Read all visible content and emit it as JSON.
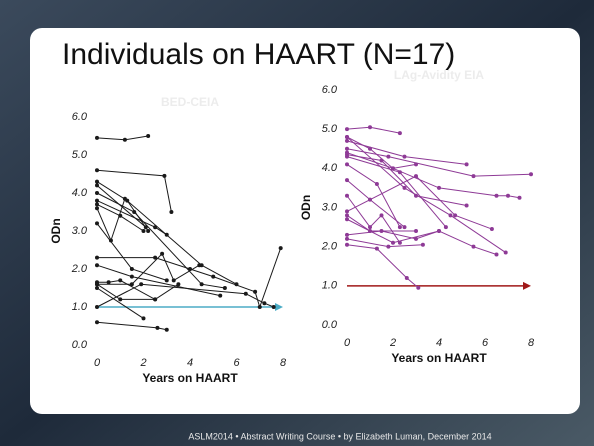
{
  "slide": {
    "title": "Individuals on HAART (N=17)",
    "footer": "ASLM2014  •  Abstract Writing Course  •  by Elizabeth Luman, December 2014"
  },
  "chart_data": [
    {
      "type": "line",
      "title": "BED-CEIA",
      "xlabel": "Years on HAART",
      "ylabel": "ODn",
      "color": "#1a1a1a",
      "xlim": [
        0,
        8
      ],
      "xticks": [
        0,
        2,
        4,
        6,
        8
      ],
      "ylim": [
        0,
        6
      ],
      "yticks": [
        {
          "value": 0,
          "label": "0.0"
        },
        {
          "value": 1,
          "label": "1.0"
        },
        {
          "value": 2,
          "label": "2.0"
        },
        {
          "value": 3,
          "label": "3.0"
        },
        {
          "value": 4,
          "label": "4.0"
        },
        {
          "value": 5,
          "label": "5.0"
        },
        {
          "value": 6,
          "label": "6.0"
        }
      ],
      "reference_line": {
        "value": 1,
        "color": "#4bacc6"
      },
      "series": [
        {
          "x": [
            0,
            1.2,
            2.2
          ],
          "values": [
            5.45,
            5.4,
            5.5
          ]
        },
        {
          "x": [
            0,
            2.9,
            3.2
          ],
          "values": [
            4.6,
            4.45,
            3.5
          ]
        },
        {
          "x": [
            0,
            1.3,
            2.2
          ],
          "values": [
            4.3,
            3.8,
            3.0
          ]
        },
        {
          "x": [
            0,
            2.1
          ],
          "values": [
            4.2,
            3.1
          ]
        },
        {
          "x": [
            0,
            1.6,
            4.5,
            5.5
          ],
          "values": [
            4.0,
            3.5,
            1.6,
            1.5
          ]
        },
        {
          "x": [
            0,
            2.5,
            3
          ],
          "values": [
            3.8,
            3.1,
            2.9
          ]
        },
        {
          "x": [
            0,
            1,
            2
          ],
          "values": [
            3.7,
            3.4,
            3.0
          ]
        },
        {
          "x": [
            0,
            0.6,
            1.2,
            4.5,
            6
          ],
          "values": [
            3.6,
            2.75,
            3.85,
            2.1,
            1.6
          ]
        },
        {
          "x": [
            0,
            1.5,
            3
          ],
          "values": [
            3.2,
            2.0,
            1.7
          ]
        },
        {
          "x": [
            0,
            2.5,
            4,
            5,
            6.8,
            7,
            7.9
          ],
          "values": [
            2.3,
            2.3,
            2.0,
            1.8,
            1.4,
            1.0,
            2.55
          ]
        },
        {
          "x": [
            0,
            1.5,
            5.3
          ],
          "values": [
            2.1,
            1.8,
            1.3
          ]
        },
        {
          "x": [
            0,
            0.5,
            1,
            2.5,
            3.5
          ],
          "values": [
            1.65,
            1.65,
            1.7,
            1.2,
            1.6
          ]
        },
        {
          "x": [
            0,
            1.5,
            2.8,
            3.3,
            4.4
          ],
          "values": [
            1.6,
            1.6,
            2.4,
            1.7,
            2.1
          ]
        },
        {
          "x": [
            0,
            1,
            2.5
          ],
          "values": [
            1.6,
            1.2,
            1.2
          ]
        },
        {
          "x": [
            0,
            2
          ],
          "values": [
            1.5,
            0.7
          ]
        },
        {
          "x": [
            0,
            1.9,
            6.4,
            7.2,
            7.6
          ],
          "values": [
            1.0,
            1.6,
            1.35,
            1.1,
            1.0
          ]
        },
        {
          "x": [
            0,
            2.6,
            3
          ],
          "values": [
            0.6,
            0.45,
            0.4
          ]
        }
      ]
    },
    {
      "type": "line",
      "title": "LAg-Avidity EIA",
      "xlabel": "Years on HAART",
      "ylabel": "ODn",
      "color": "#8e3a96",
      "xlim": [
        0,
        8
      ],
      "xticks": [
        0,
        2,
        4,
        6,
        8
      ],
      "ylim": [
        0,
        6
      ],
      "yticks": [
        {
          "value": 0,
          "label": "0.0"
        },
        {
          "value": 1,
          "label": "1.0"
        },
        {
          "value": 2,
          "label": "2.0"
        },
        {
          "value": 3,
          "label": "3.0"
        },
        {
          "value": 4,
          "label": "4.0"
        },
        {
          "value": 5,
          "label": "5.0"
        },
        {
          "value": 6,
          "label": "6.0"
        }
      ],
      "reference_line": {
        "value": 1,
        "color": "#a01818"
      },
      "series": [
        {
          "x": [
            0,
            1,
            2.3
          ],
          "values": [
            5.0,
            5.05,
            4.9
          ]
        },
        {
          "x": [
            0,
            1,
            2,
            3
          ],
          "values": [
            4.8,
            4.5,
            4.0,
            4.1
          ]
        },
        {
          "x": [
            0,
            2.5,
            5.2
          ],
          "values": [
            4.7,
            4.3,
            4.1
          ]
        },
        {
          "x": [
            0,
            1.8,
            5.5,
            8
          ],
          "values": [
            4.5,
            4.3,
            3.8,
            3.85
          ]
        },
        {
          "x": [
            0,
            2,
            4,
            6.5,
            7,
            7.5
          ],
          "values": [
            4.4,
            4.0,
            3.5,
            3.3,
            3.3,
            3.25
          ]
        },
        {
          "x": [
            0,
            1.5,
            3,
            5.2
          ],
          "values": [
            4.35,
            4.2,
            3.3,
            3.05
          ]
        },
        {
          "x": [
            0,
            2.3,
            4.3
          ],
          "values": [
            4.3,
            3.9,
            2.5
          ]
        },
        {
          "x": [
            0,
            1.3,
            2.3
          ],
          "values": [
            4.1,
            3.6,
            2.5
          ]
        },
        {
          "x": [
            0,
            1,
            2.5
          ],
          "values": [
            3.7,
            3.2,
            2.5
          ]
        },
        {
          "x": [
            0,
            1,
            1.5,
            2.3
          ],
          "values": [
            3.3,
            2.5,
            2.8,
            2.1
          ]
        },
        {
          "x": [
            0,
            3,
            4.7,
            6.3
          ],
          "values": [
            2.9,
            3.8,
            2.8,
            2.45
          ]
        },
        {
          "x": [
            0,
            1,
            3
          ],
          "values": [
            2.8,
            2.4,
            2.4
          ]
        },
        {
          "x": [
            0,
            2,
            4,
            5.5,
            6.5
          ],
          "values": [
            2.7,
            2.1,
            2.4,
            2.0,
            1.8
          ]
        },
        {
          "x": [
            0,
            1.5,
            3,
            4
          ],
          "values": [
            2.3,
            2.4,
            2.2,
            2.4
          ]
        },
        {
          "x": [
            0,
            1.8,
            3.3
          ],
          "values": [
            2.2,
            2.0,
            2.05
          ]
        },
        {
          "x": [
            0,
            1.3,
            2.6,
            3.1
          ],
          "values": [
            2.05,
            1.95,
            1.2,
            0.95
          ]
        },
        {
          "x": [
            0,
            2.5,
            4.5,
            6.9
          ],
          "values": [
            4.8,
            3.5,
            2.8,
            1.85
          ]
        }
      ]
    }
  ]
}
